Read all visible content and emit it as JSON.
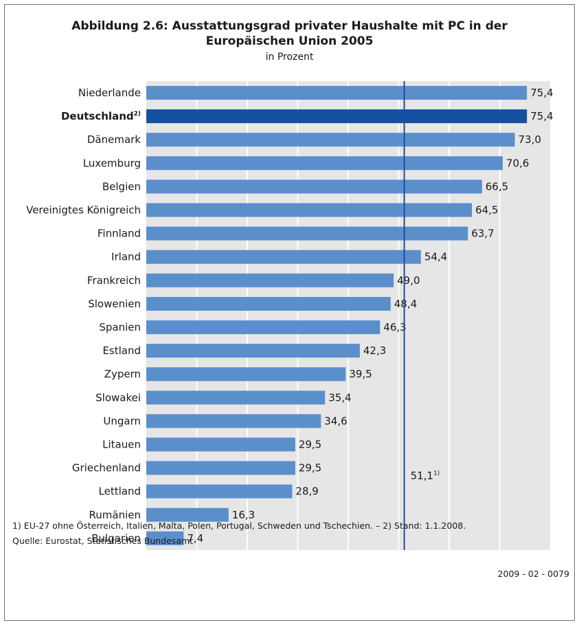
{
  "header": {
    "title_line1": "Abbildung 2.6: Ausstattungsgrad privater Haushalte mit PC in der",
    "title_line2": "Europäischen Union 2005",
    "subtitle": "in Prozent"
  },
  "chart_data": {
    "type": "bar",
    "orientation": "horizontal",
    "unit": "Prozent",
    "xlim": [
      0,
      80
    ],
    "grid": true,
    "categories": [
      {
        "label": "Niederlande",
        "value": 75.4,
        "value_text": "75,4",
        "highlight": false
      },
      {
        "label": "Deutschland",
        "superscript": "2)",
        "value": 75.4,
        "value_text": "75,4",
        "highlight": true
      },
      {
        "label": "Dänemark",
        "value": 73.0,
        "value_text": "73,0",
        "highlight": false
      },
      {
        "label": "Luxemburg",
        "value": 70.6,
        "value_text": "70,6",
        "highlight": false
      },
      {
        "label": "Belgien",
        "value": 66.5,
        "value_text": "66,5",
        "highlight": false
      },
      {
        "label": "Vereinigtes Königreich",
        "value": 64.5,
        "value_text": "64,5",
        "highlight": false
      },
      {
        "label": "Finnland",
        "value": 63.7,
        "value_text": "63,7",
        "highlight": false
      },
      {
        "label": "Irland",
        "value": 54.4,
        "value_text": "54,4",
        "highlight": false
      },
      {
        "label": "Frankreich",
        "value": 49.0,
        "value_text": "49,0",
        "highlight": false
      },
      {
        "label": "Slowenien",
        "value": 48.4,
        "value_text": "48,4",
        "highlight": false
      },
      {
        "label": "Spanien",
        "value": 46.3,
        "value_text": "46,3",
        "highlight": false
      },
      {
        "label": "Estland",
        "value": 42.3,
        "value_text": "42,3",
        "highlight": false
      },
      {
        "label": "Zypern",
        "value": 39.5,
        "value_text": "39,5",
        "highlight": false
      },
      {
        "label": "Slowakei",
        "value": 35.4,
        "value_text": "35,4",
        "highlight": false
      },
      {
        "label": "Ungarn",
        "value": 34.6,
        "value_text": "34,6",
        "highlight": false
      },
      {
        "label": "Litauen",
        "value": 29.5,
        "value_text": "29,5",
        "highlight": false
      },
      {
        "label": "Griechenland",
        "value": 29.5,
        "value_text": "29,5",
        "highlight": false
      },
      {
        "label": "Lettland",
        "value": 28.9,
        "value_text": "28,9",
        "highlight": false
      },
      {
        "label": "Rumänien",
        "value": 16.3,
        "value_text": "16,3",
        "highlight": false
      },
      {
        "label": "Bulgarien",
        "value": 7.4,
        "value_text": "7,4",
        "highlight": false
      }
    ],
    "reference_line": {
      "value": 51.1,
      "label": "51,1",
      "superscript": "1)"
    },
    "colors": {
      "bar": "#5b8fcc",
      "bar_highlight": "#1450a0",
      "reference_line": "#1a4f9c",
      "plot_background": "#e6e6e6",
      "grid": "#ffffff"
    }
  },
  "footer": {
    "footnote": "1) EU-27 ohne Österreich, Italien, Malta, Polen, Portugal, Schweden und Tschechien. – 2) Stand: 1.1.2008.",
    "source": "Quelle: Eurostat, Statistisches Bundesamt",
    "code": "2009 - 02 - 0079"
  }
}
